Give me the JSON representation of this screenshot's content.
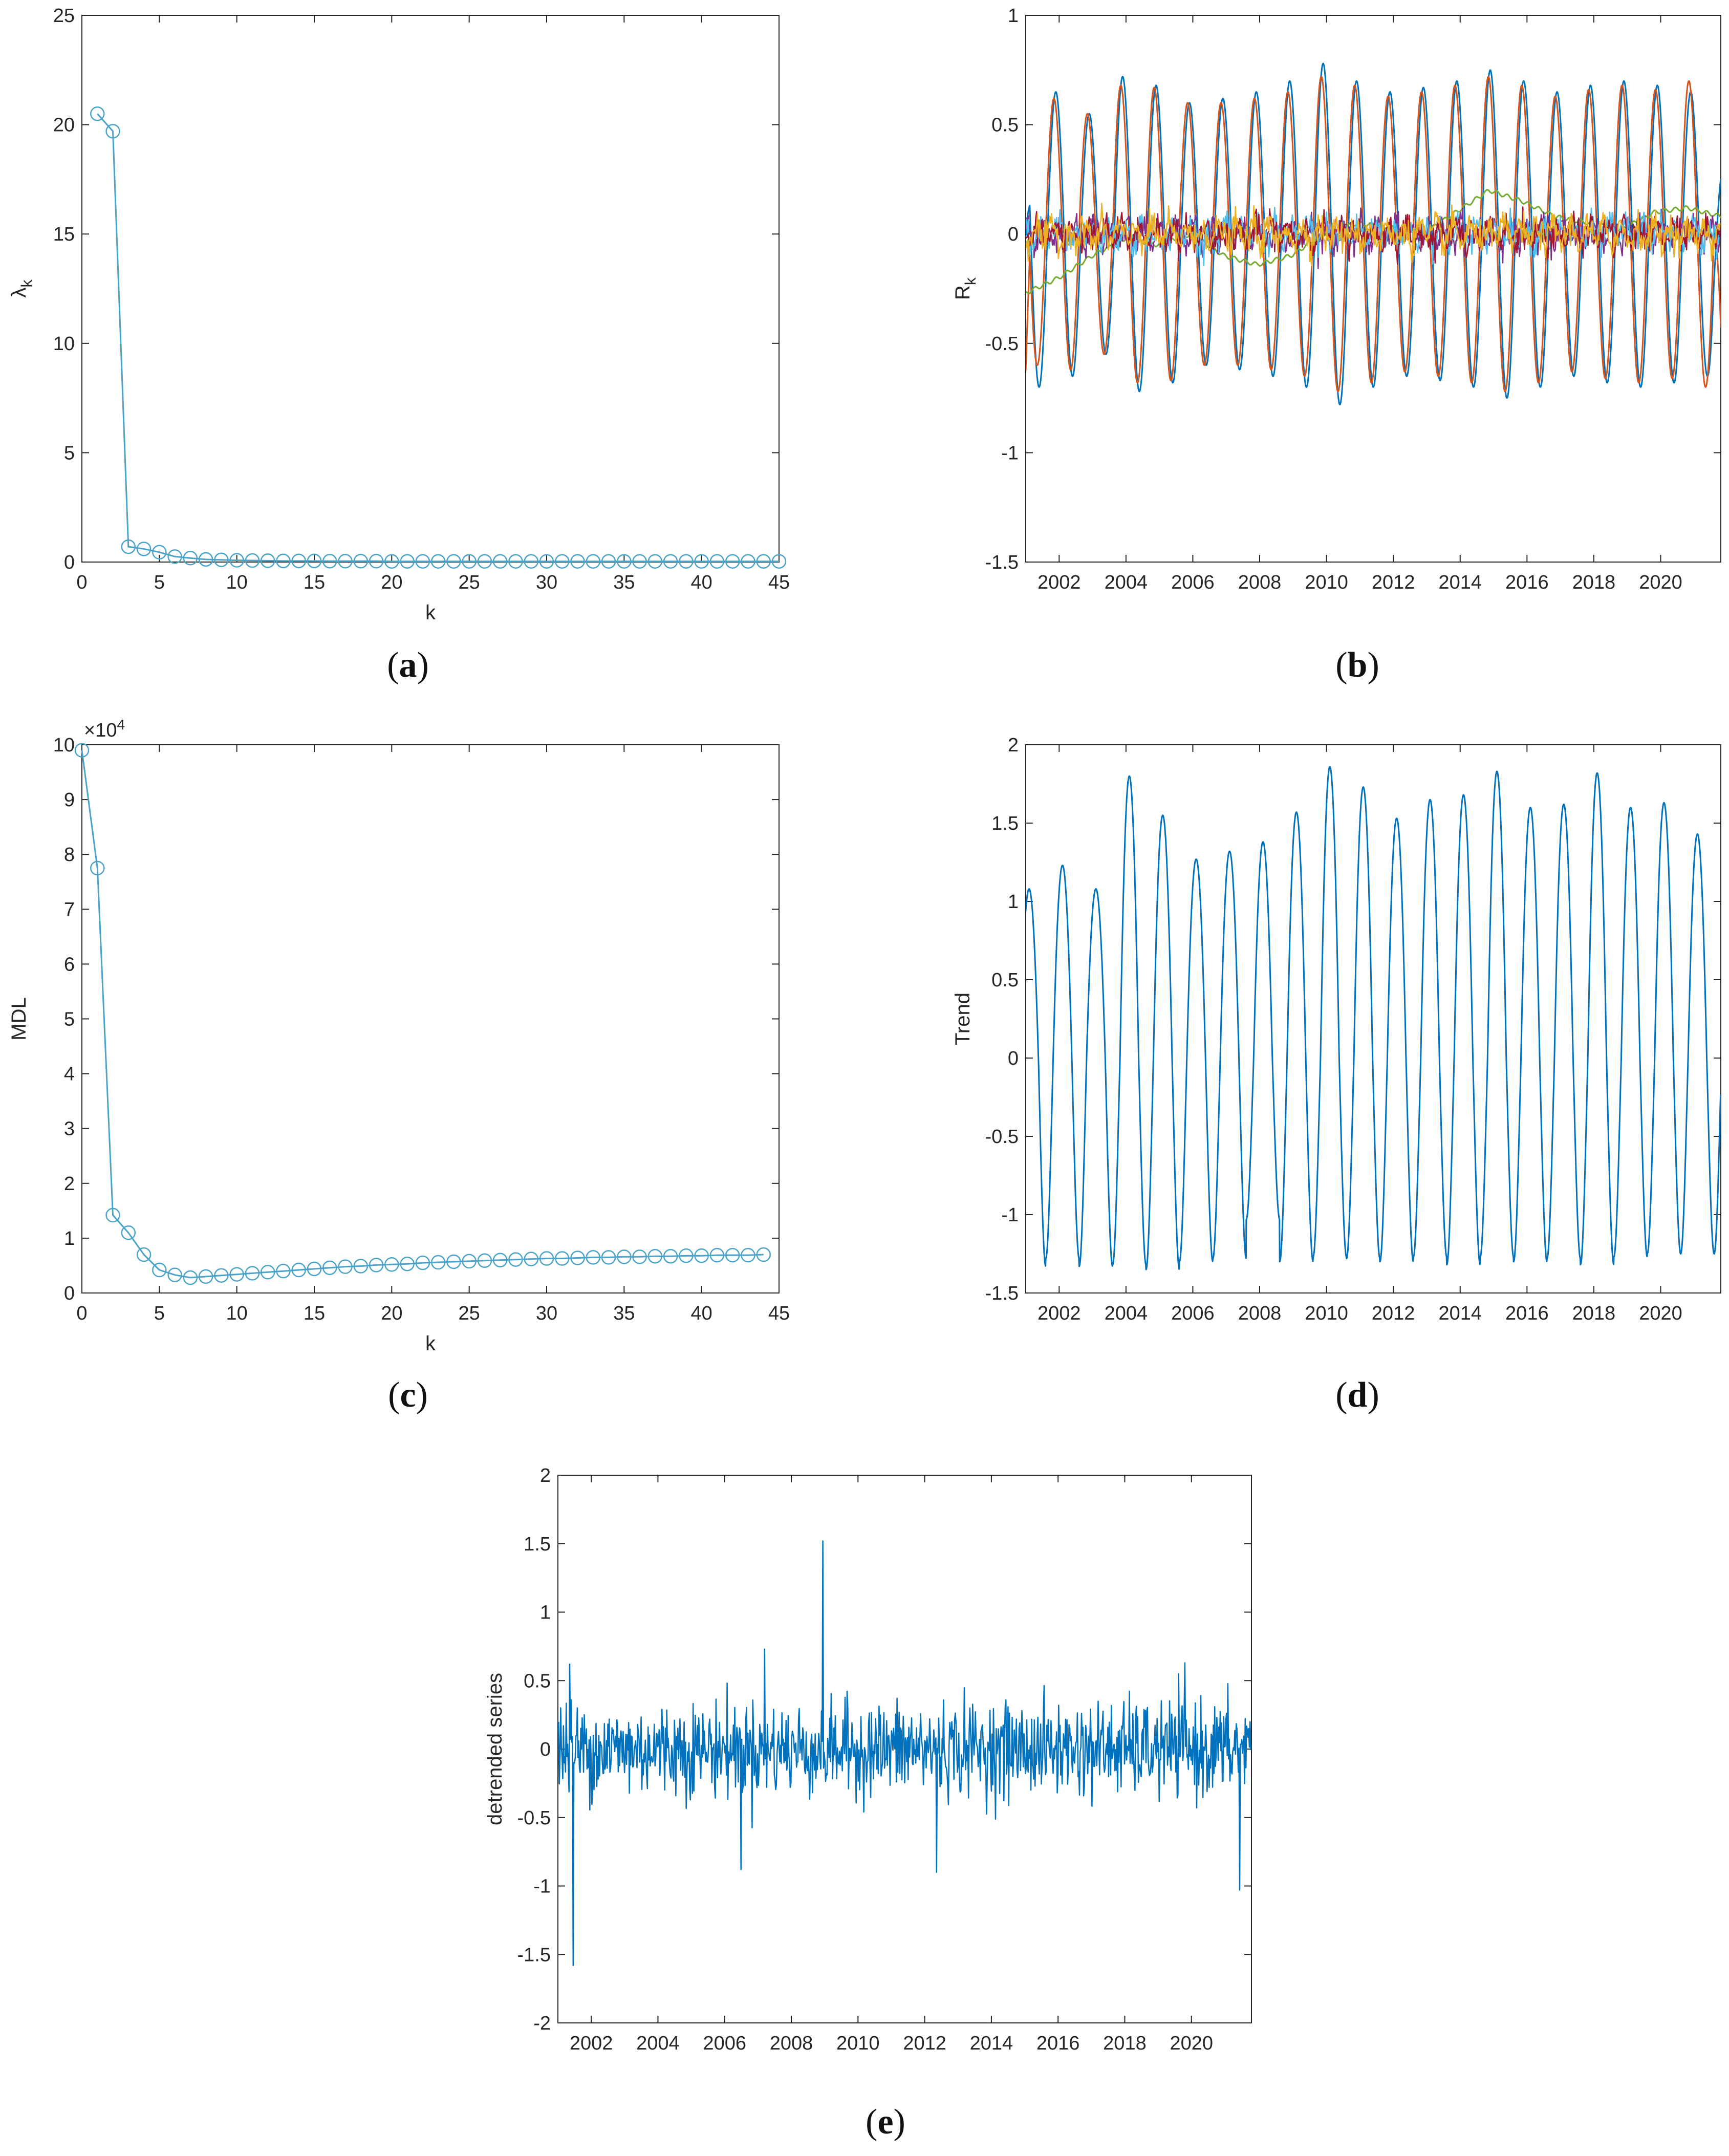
{
  "colors": {
    "axis": "#262626",
    "marker_series": "#4aa3c8",
    "blue": "#0072BD",
    "orange": "#D95319",
    "yellow": "#EDB120",
    "purple": "#7E2F8E",
    "green": "#77AC30",
    "cyan": "#4DBEEE",
    "red": "#A2142F"
  },
  "captions": [
    "a",
    "b",
    "c",
    "d",
    "e"
  ],
  "chart_data": [
    {
      "id": "a",
      "type": "line",
      "marker": "circle",
      "xlabel": "k",
      "ylabel": "λ",
      "ylabel_sub": "k",
      "xlim": [
        0,
        45
      ],
      "ylim": [
        0,
        25
      ],
      "xticks": [
        "0",
        "5",
        "10",
        "15",
        "20",
        "25",
        "30",
        "35",
        "40",
        "45"
      ],
      "yticks": [
        "0",
        "5",
        "10",
        "15",
        "20",
        "25"
      ],
      "x": [
        1,
        2,
        3,
        4,
        5,
        6,
        7,
        8,
        9,
        10,
        11,
        12,
        13,
        14,
        15,
        16,
        17,
        18,
        19,
        20,
        21,
        22,
        23,
        24,
        25,
        26,
        27,
        28,
        29,
        30,
        31,
        32,
        33,
        34,
        35,
        36,
        37,
        38,
        39,
        40,
        41,
        42,
        43,
        44,
        45
      ],
      "values": [
        20.5,
        19.7,
        0.7,
        0.6,
        0.45,
        0.25,
        0.18,
        0.12,
        0.1,
        0.08,
        0.07,
        0.06,
        0.05,
        0.05,
        0.05,
        0.04,
        0.04,
        0.04,
        0.04,
        0.03,
        0.03,
        0.03,
        0.03,
        0.03,
        0.03,
        0.03,
        0.03,
        0.03,
        0.03,
        0.03,
        0.03,
        0.03,
        0.03,
        0.03,
        0.03,
        0.03,
        0.03,
        0.03,
        0.03,
        0.03,
        0.03,
        0.03,
        0.03,
        0.03,
        0.03
      ]
    },
    {
      "id": "b",
      "type": "line",
      "ylabel": "R",
      "ylabel_sub": "k",
      "xlim": [
        2001,
        2021.8
      ],
      "ylim": [
        -1.5,
        1
      ],
      "xticks": [
        "2002",
        "2004",
        "2006",
        "2008",
        "2010",
        "2012",
        "2014",
        "2016",
        "2018",
        "2020"
      ],
      "yticks": [
        "-1.5",
        "-1",
        "-0.5",
        "0",
        "0.5",
        "1"
      ],
      "series": [
        {
          "color": "blue",
          "kind": "seasonal",
          "amplitudes": [
            0.7,
            0.65,
            0.55,
            0.72,
            0.68,
            0.6,
            0.62,
            0.65,
            0.7,
            0.78,
            0.7,
            0.65,
            0.67,
            0.7,
            0.75,
            0.7,
            0.65,
            0.68,
            0.7,
            0.68,
            0.65
          ]
        },
        {
          "color": "orange",
          "kind": "seasonal",
          "amplitudes": [
            0.6,
            0.62,
            0.55,
            0.68,
            0.67,
            0.6,
            0.6,
            0.62,
            0.65,
            0.72,
            0.68,
            0.63,
            0.65,
            0.68,
            0.72,
            0.68,
            0.63,
            0.66,
            0.68,
            0.66,
            0.7
          ]
        },
        {
          "color": "green",
          "kind": "slow",
          "values": [
            -0.27,
            -0.2,
            -0.1,
            -0.02,
            -0.05,
            0.0,
            -0.1,
            -0.14,
            -0.1,
            0.0,
            0.05,
            0.03,
            0.0,
            0.1,
            0.2,
            0.15,
            0.08,
            0.05,
            0.02,
            0.1,
            0.12,
            0.08
          ]
        },
        {
          "color": "purple",
          "kind": "noise"
        },
        {
          "color": "cyan",
          "kind": "noise"
        },
        {
          "color": "red",
          "kind": "noise"
        },
        {
          "color": "yellow",
          "kind": "noise"
        }
      ]
    },
    {
      "id": "c",
      "type": "line",
      "marker": "circle",
      "xlabel": "k",
      "ylabel": "MDL",
      "multiplier": "×10",
      "multiplier_exp": "4",
      "xlim": [
        0,
        45
      ],
      "ylim": [
        0,
        10
      ],
      "xticks": [
        "0",
        "5",
        "10",
        "15",
        "20",
        "25",
        "30",
        "35",
        "40",
        "45"
      ],
      "yticks": [
        "0",
        "1",
        "2",
        "3",
        "4",
        "5",
        "6",
        "7",
        "8",
        "9",
        "10"
      ],
      "x": [
        0,
        1,
        2,
        3,
        4,
        5,
        6,
        7,
        8,
        9,
        10,
        11,
        12,
        13,
        14,
        15,
        16,
        17,
        18,
        19,
        20,
        21,
        22,
        23,
        24,
        25,
        26,
        27,
        28,
        29,
        30,
        31,
        32,
        33,
        34,
        35,
        36,
        37,
        38,
        39,
        40,
        41,
        42,
        43,
        44
      ],
      "values": [
        9.9,
        7.75,
        1.42,
        1.1,
        0.7,
        0.42,
        0.33,
        0.28,
        0.3,
        0.32,
        0.34,
        0.36,
        0.38,
        0.4,
        0.42,
        0.44,
        0.46,
        0.48,
        0.49,
        0.51,
        0.52,
        0.53,
        0.55,
        0.56,
        0.57,
        0.58,
        0.59,
        0.6,
        0.61,
        0.62,
        0.63,
        0.63,
        0.64,
        0.65,
        0.65,
        0.66,
        0.66,
        0.67,
        0.67,
        0.68,
        0.68,
        0.69,
        0.69,
        0.69,
        0.7
      ]
    },
    {
      "id": "d",
      "type": "line",
      "ylabel": "Trend",
      "xlim": [
        2001,
        2021.8
      ],
      "ylim": [
        -1.5,
        2
      ],
      "xticks": [
        "2002",
        "2004",
        "2006",
        "2008",
        "2010",
        "2012",
        "2014",
        "2016",
        "2018",
        "2020"
      ],
      "yticks": [
        "-1.5",
        "-1",
        "-0.5",
        "0",
        "0.5",
        "1",
        "1.5",
        "2"
      ],
      "peaks": [
        1.08,
        1.23,
        1.08,
        1.8,
        1.55,
        1.27,
        1.32,
        1.38,
        1.57,
        1.86,
        1.73,
        1.53,
        1.65,
        1.68,
        1.83,
        1.6,
        1.62,
        1.82,
        1.6,
        1.63,
        1.43
      ],
      "troughs": [
        -1.33,
        -1.28,
        -1.33,
        -1.32,
        -1.35,
        -1.3,
        -1.28,
        -1.03,
        -1.3,
        -1.27,
        -1.28,
        -1.3,
        -1.27,
        -1.32,
        -1.27,
        -1.3,
        -1.28,
        -1.32,
        -1.27,
        -1.25,
        -1.25
      ]
    },
    {
      "id": "e",
      "type": "line",
      "ylabel": "detrended series",
      "xlim": [
        2001,
        2021.8
      ],
      "ylim": [
        -2,
        2
      ],
      "xticks": [
        "2002",
        "2004",
        "2006",
        "2008",
        "2010",
        "2012",
        "2014",
        "2016",
        "2018",
        "2020"
      ],
      "yticks": [
        "-2",
        "-1.5",
        "-1",
        "-0.5",
        "0",
        "0.5",
        "1",
        "1.5",
        "2"
      ],
      "noise_sd": 0.17,
      "spikes": [
        {
          "x": 2001.35,
          "y": 0.62
        },
        {
          "x": 2001.45,
          "y": -1.58
        },
        {
          "x": 2006.5,
          "y": -0.88
        },
        {
          "x": 2007.2,
          "y": 0.73
        },
        {
          "x": 2008.95,
          "y": 1.52
        },
        {
          "x": 2012.35,
          "y": -0.9
        },
        {
          "x": 2019.8,
          "y": 0.63
        },
        {
          "x": 2021.45,
          "y": -1.03
        }
      ]
    }
  ]
}
